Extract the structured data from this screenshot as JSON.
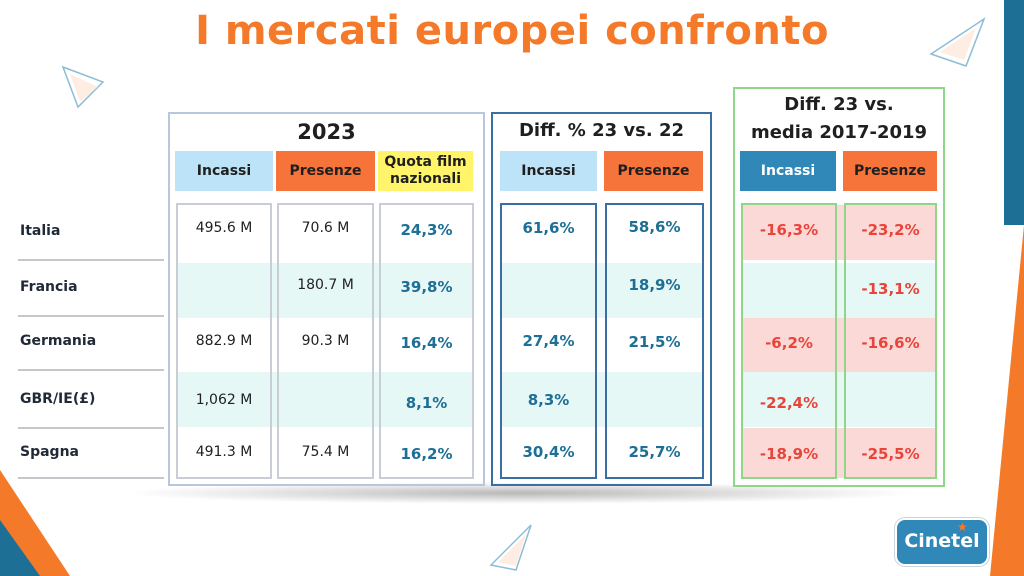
{
  "title": "I mercati europei confronto",
  "rows": [
    "Italia",
    "Francia",
    "Germania",
    "GBR/IE(£)",
    "Spagna"
  ],
  "panel_2023": {
    "title": "2023",
    "headers": {
      "incassi": "Incassi",
      "presenze": "Presenze",
      "quota": "Quota film nazionali"
    },
    "incassi": [
      "495.6 M",
      "",
      "882.9 M",
      "1,062 M",
      "491.3 M"
    ],
    "presenze": [
      "70.6 M",
      "180.7 M",
      "90.3 M",
      "",
      "75.4 M"
    ],
    "quota": [
      "24,3%",
      "39,8%",
      "16,4%",
      "8,1%",
      "16,2%"
    ]
  },
  "panel_diff22": {
    "title": "Diff. % 23 vs. 22",
    "headers": {
      "incassi": "Incassi",
      "presenze": "Presenze"
    },
    "incassi": [
      "61,6%",
      "",
      "27,4%",
      "8,3%",
      "30,4%"
    ],
    "presenze": [
      "58,6%",
      "18,9%",
      "21,5%",
      "",
      "25,7%"
    ]
  },
  "panel_diffmedia": {
    "title_line1": "Diff. 23 vs.",
    "title_line2": "media 2017-2019",
    "headers": {
      "incassi": "Incassi",
      "presenze": "Presenze"
    },
    "incassi": [
      "-16,3%",
      "",
      "-6,2%",
      "-22,4%",
      "-18,9%"
    ],
    "presenze": [
      "-23,2%",
      "-13,1%",
      "-16,6%",
      "",
      "-25,5%"
    ]
  },
  "logo": {
    "text": "Cinetel"
  },
  "colors": {
    "title_orange": "#f47a2a",
    "header_blue": "#bde3f8",
    "header_orange": "#f6733a",
    "header_yellow": "#fff46a",
    "header_dark_blue": "#2f88b7",
    "band_cyan": "#e6f8f6",
    "band_pink": "#fbd9d7",
    "panel_green": "#8fd68a",
    "value_blue": "#1d6f95",
    "value_red": "#e9443a"
  }
}
